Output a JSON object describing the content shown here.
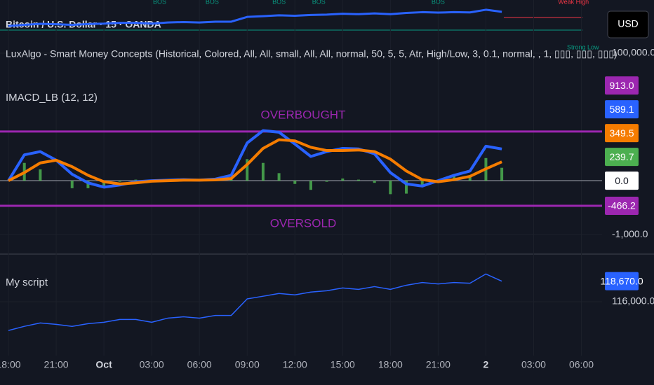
{
  "chart_data": [
    {
      "type": "price",
      "title": "Bitcoin / U.S. Dollar · 15 · OANDA",
      "subtitle": "LuxAlgo - Smart Money Concepts (Historical, Colored, All, All, small, All, All, normal, 50, 5, 5, Atr, High/Low, 3, 0.1, normal, , 1, ▯▯▯, ▯▯▯, ▯▯▯)",
      "currency": "USD",
      "x": [
        0,
        1,
        2,
        3,
        4,
        5,
        6,
        7,
        8,
        9,
        10,
        11,
        12,
        13,
        14,
        15,
        16,
        17,
        18,
        19,
        20,
        21,
        22,
        23,
        24,
        25,
        26,
        27,
        28,
        29,
        30,
        31
      ],
      "values": [
        112260,
        112800,
        113240,
        113060,
        112800,
        113150,
        113330,
        113690,
        113690,
        113330,
        113860,
        114040,
        113860,
        114220,
        114220,
        116360,
        116710,
        117070,
        116890,
        117250,
        117420,
        117780,
        117600,
        117960,
        117600,
        118140,
        118490,
        118310,
        118490,
        118400,
        119600,
        118670
      ],
      "color": "#2962ff",
      "ylim": [
        92400,
        124000
      ],
      "yticks": [
        {
          "value": 100000,
          "label": "100,000.0"
        }
      ],
      "annotations": [
        {
          "text": "BOS",
          "x": 9.5,
          "y": 123000,
          "color": "#089981"
        },
        {
          "text": "BOS",
          "x": 12.8,
          "y": 123000,
          "color": "#089981"
        },
        {
          "text": "BOS",
          "x": 17,
          "y": 123000,
          "color": "#089981"
        },
        {
          "text": "BOS",
          "x": 19.5,
          "y": 123000,
          "color": "#089981"
        },
        {
          "text": "BOS",
          "x": 27,
          "y": 123000,
          "color": "#089981"
        },
        {
          "text": "Weak High",
          "x": 35.5,
          "y": 123000,
          "color": "#f23645"
        },
        {
          "text": "Strong Low",
          "x": 36.1,
          "y": 102500,
          "color": "#089981"
        }
      ]
    },
    {
      "type": "combo",
      "title": "IMACD_LB (12, 12)",
      "x": [
        0,
        1,
        2,
        3,
        4,
        5,
        6,
        7,
        8,
        9,
        10,
        11,
        12,
        13,
        14,
        15,
        16,
        17,
        18,
        19,
        20,
        21,
        22,
        23,
        24,
        25,
        26,
        27,
        28,
        29,
        30,
        31
      ],
      "series": [
        {
          "type": "bar",
          "color": "#4caf50",
          "values": [
            0,
            330,
            210,
            0,
            -140,
            -140,
            -100,
            -20,
            20,
            10,
            10,
            10,
            0,
            15,
            60,
            400,
            330,
            140,
            -60,
            -170,
            -20,
            40,
            20,
            -40,
            -250,
            -240,
            -120,
            20,
            80,
            100,
            420,
            239.7
          ],
          "value_labels": [
            null,
            null,
            null,
            null,
            null,
            null,
            null,
            null,
            null,
            null,
            null,
            null,
            null,
            null,
            null,
            null,
            null,
            null,
            null,
            null,
            null,
            null,
            null,
            null,
            null,
            null,
            null,
            null,
            null,
            null,
            null,
            "239.7"
          ]
        },
        {
          "type": "line",
          "color": "#2962ff",
          "values": [
            0,
            480,
            540,
            380,
            120,
            -40,
            -120,
            -80,
            -20,
            0,
            10,
            20,
            10,
            30,
            100,
            700,
            930,
            900,
            680,
            450,
            540,
            600,
            590,
            500,
            150,
            -60,
            -100,
            0,
            100,
            180,
            640,
            589.1
          ],
          "value_labels": [
            null,
            null,
            null,
            null,
            null,
            null,
            null,
            null,
            null,
            null,
            null,
            null,
            null,
            null,
            null,
            null,
            null,
            null,
            null,
            null,
            null,
            null,
            null,
            null,
            null,
            null,
            null,
            null,
            null,
            null,
            null,
            "589.1"
          ]
        },
        {
          "type": "line",
          "color": "#f57c00",
          "values": [
            0,
            150,
            330,
            380,
            260,
            100,
            -20,
            -60,
            -40,
            -10,
            0,
            10,
            10,
            15,
            40,
            300,
            600,
            760,
            740,
            620,
            560,
            560,
            570,
            540,
            400,
            180,
            20,
            -20,
            20,
            80,
            220,
            349.5
          ],
          "value_labels": [
            null,
            null,
            null,
            null,
            null,
            null,
            null,
            null,
            null,
            null,
            null,
            null,
            null,
            null,
            null,
            null,
            null,
            null,
            null,
            null,
            null,
            null,
            null,
            null,
            null,
            null,
            null,
            null,
            null,
            null,
            null,
            "349.5"
          ]
        }
      ],
      "levels": [
        {
          "value": 913,
          "label": "913.0",
          "text": "OVERBOUGHT",
          "color": "#9c27b0"
        },
        {
          "value": -466.2,
          "label": "-466.2",
          "text": "OVERSOLD",
          "color": "#9c27b0"
        },
        {
          "value": 0,
          "label": "0.0",
          "color": "#787b86"
        }
      ],
      "ylim": [
        -1350,
        2055
      ],
      "yticks": [
        {
          "value": -1000,
          "label": "-1,000.0"
        }
      ]
    },
    {
      "type": "line",
      "title": "My script",
      "x": [
        0,
        1,
        2,
        3,
        4,
        5,
        6,
        7,
        8,
        9,
        10,
        11,
        12,
        13,
        14,
        15,
        16,
        17,
        18,
        19,
        20,
        21,
        22,
        23,
        24,
        25,
        26,
        27,
        28,
        29,
        30,
        31
      ],
      "values": [
        112260,
        112800,
        113240,
        113060,
        112800,
        113150,
        113330,
        113690,
        113690,
        113330,
        113860,
        114040,
        113860,
        114220,
        114220,
        116360,
        116710,
        117070,
        116890,
        117250,
        117420,
        117780,
        117600,
        117960,
        117600,
        118140,
        118490,
        118310,
        118490,
        118400,
        119600,
        118670
      ],
      "value_labels": [
        null,
        null,
        null,
        null,
        null,
        null,
        null,
        null,
        null,
        null,
        null,
        null,
        null,
        null,
        null,
        null,
        null,
        null,
        null,
        null,
        null,
        null,
        null,
        null,
        null,
        null,
        null,
        null,
        null,
        null,
        null,
        "118,670.0"
      ],
      "color": "#2962ff",
      "ylim": [
        109000,
        122000
      ],
      "yticks": [
        {
          "value": 116000,
          "label": "116,000.0"
        }
      ],
      "xlim": [
        -0.53,
        37.3
      ],
      "xticks": [
        {
          "value": 0,
          "label": "18:00"
        },
        {
          "value": 3,
          "label": "21:00"
        },
        {
          "value": 6,
          "label": "Oct"
        },
        {
          "value": 9,
          "label": "03:00"
        },
        {
          "value": 12,
          "label": "06:00"
        },
        {
          "value": 15,
          "label": "09:00"
        },
        {
          "value": 18,
          "label": "12:00"
        },
        {
          "value": 21,
          "label": "15:00"
        },
        {
          "value": 24,
          "label": "18:00"
        },
        {
          "value": 27,
          "label": "21:00"
        },
        {
          "value": 30,
          "label": "2"
        },
        {
          "value": 33,
          "label": "03:00"
        },
        {
          "value": 36,
          "label": "06:00"
        }
      ]
    }
  ]
}
